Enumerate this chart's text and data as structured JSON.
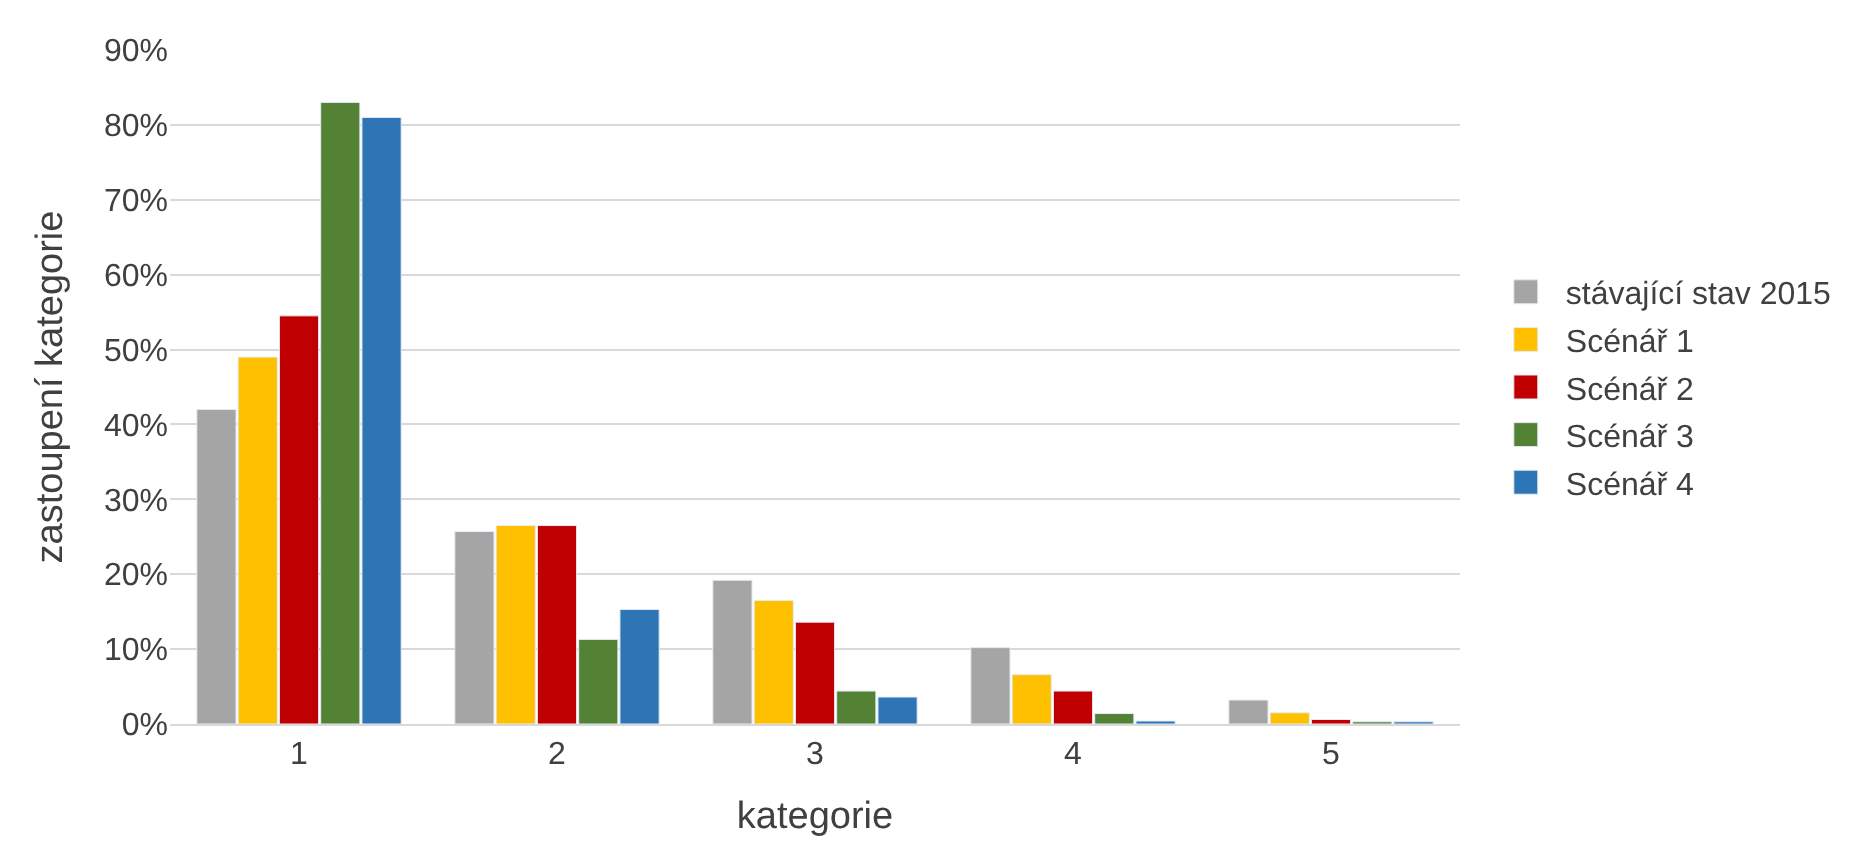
{
  "chart_data": {
    "type": "bar",
    "xlabel": "kategorie",
    "ylabel": "zastoupení kategorie",
    "categories": [
      "1",
      "2",
      "3",
      "4",
      "5"
    ],
    "series": [
      {
        "name": "stávající stav 2015",
        "color": "#a5a5a5",
        "values": [
          42,
          25.7,
          19.2,
          10.2,
          3.2
        ]
      },
      {
        "name": "Scénář 1",
        "color": "#ffc000",
        "values": [
          49,
          26.5,
          16.5,
          6.6,
          1.5
        ]
      },
      {
        "name": "Scénář 2",
        "color": "#c00000",
        "values": [
          54.5,
          26.5,
          13.6,
          4.4,
          0.6
        ]
      },
      {
        "name": "Scénář 3",
        "color": "#548235",
        "values": [
          83,
          11.3,
          4.4,
          1.4,
          0.3
        ]
      },
      {
        "name": "Scénář 4",
        "color": "#2e75b6",
        "values": [
          81,
          15.3,
          3.6,
          0.4,
          0.3
        ]
      }
    ],
    "ylim": [
      0,
      90
    ],
    "yticks": [
      {
        "value": 0,
        "label": "0%"
      },
      {
        "value": 10,
        "label": "10%"
      },
      {
        "value": 20,
        "label": "20%"
      },
      {
        "value": 30,
        "label": "30%"
      },
      {
        "value": 40,
        "label": "40%"
      },
      {
        "value": 50,
        "label": "50%"
      },
      {
        "value": 60,
        "label": "60%"
      },
      {
        "value": 70,
        "label": "70%"
      },
      {
        "value": 80,
        "label": "80%"
      },
      {
        "value": 90,
        "label": "90%"
      }
    ],
    "grid": "y",
    "legend": "right"
  }
}
